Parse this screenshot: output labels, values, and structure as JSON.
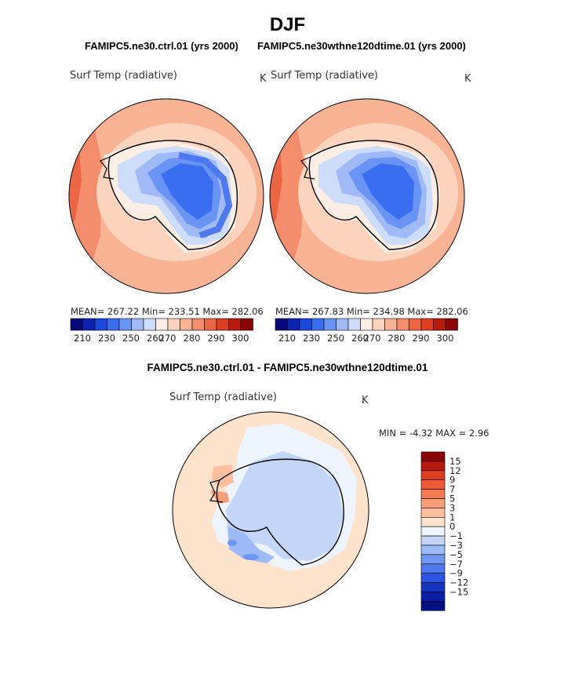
{
  "figure": {
    "title": "DJF",
    "ctrl_case": "FAMIPC5.ne30.ctrl.01 (yrs 2000)",
    "test_case": "FAMIPC5.ne30wthne120dtime.01 (yrs 2000)",
    "diff_title": "FAMIPC5.ne30.ctrl.01 - FAMIPC5.ne30wthne120dtime.01"
  },
  "panels": {
    "left": {
      "variable": "Surf Temp (radiative)",
      "units": "K",
      "stats": "MEAN= 267.22   Min= 233.51   Max= 282.06"
    },
    "right": {
      "variable": "Surf Temp (radiative)",
      "units": "K",
      "stats": "MEAN= 267.83   Min= 234.98   Max= 282.06"
    },
    "diff": {
      "variable": "Surf Temp (radiative)",
      "units": "K",
      "stats": "MIN =   -4.32  MAX =    2.96"
    }
  },
  "colors": {
    "abs_scale": [
      "#08087a",
      "#0b23b0",
      "#1a48dc",
      "#3a6ef0",
      "#6a94f4",
      "#9fbaf6",
      "#cddcf8",
      "#fbeee4",
      "#fcd3bd",
      "#f8b294",
      "#f48d6b",
      "#ec6643",
      "#dc3e1f",
      "#b81a0e",
      "#8a0505"
    ],
    "diff_scale": [
      "#8a0505",
      "#b81a0e",
      "#dc3e1f",
      "#ee5a33",
      "#f47a52",
      "#f89d78",
      "#fbbf9f",
      "#fde2cc",
      "#eef4fc",
      "#c4d6f8",
      "#9cbaf6",
      "#6f96f2",
      "#4d78ee",
      "#2d55e4",
      "#1434c2",
      "#0b1ea6",
      "#050f86"
    ]
  },
  "chart_data": [
    {
      "type": "heatmap",
      "projection": "south-polar-stereographic",
      "variable": "Surf Temp (radiative)",
      "units": "K",
      "case": "FAMIPC5.ne30.ctrl.01 (yrs 2000)",
      "mean": 267.22,
      "min": 233.51,
      "max": 282.06,
      "colorbar_ticks": [
        "210",
        "230",
        "250",
        "260",
        "270",
        "280",
        "290",
        "300"
      ]
    },
    {
      "type": "heatmap",
      "projection": "south-polar-stereographic",
      "variable": "Surf Temp (radiative)",
      "units": "K",
      "case": "FAMIPC5.ne30wthne120dtime.01 (yrs 2000)",
      "mean": 267.83,
      "min": 234.98,
      "max": 282.06,
      "colorbar_ticks": [
        "210",
        "230",
        "250",
        "260",
        "270",
        "280",
        "290",
        "300"
      ]
    },
    {
      "type": "heatmap",
      "projection": "south-polar-stereographic",
      "variable": "Surf Temp (radiative)",
      "units": "K",
      "case": "FAMIPC5.ne30.ctrl.01 - FAMIPC5.ne30wthne120dtime.01",
      "min": -4.32,
      "max": 2.96,
      "colorbar_ticks": [
        "15",
        "12",
        "9",
        "7",
        "5",
        "3",
        "1",
        "0",
        "−1",
        "−3",
        "−5",
        "−7",
        "−9",
        "−12",
        "−15"
      ]
    }
  ]
}
